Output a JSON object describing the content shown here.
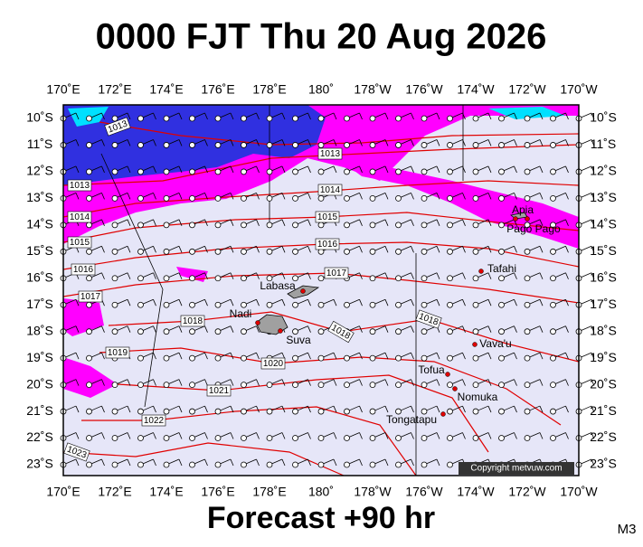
{
  "header": {
    "title": "0000 FJT Thu 20 Aug 2026"
  },
  "axis": {
    "lon_labels": [
      "170˚E",
      "172˚E",
      "174˚E",
      "176˚E",
      "178˚E",
      "180˚",
      "178˚W",
      "176˚W",
      "174˚W",
      "172˚W",
      "170˚W"
    ],
    "lat_labels": [
      "10˚S",
      "11˚S",
      "12˚S",
      "13˚S",
      "14˚S",
      "15˚S",
      "16˚S",
      "17˚S",
      "18˚S",
      "19˚S",
      "20˚S",
      "21˚S",
      "22˚S",
      "23˚S"
    ]
  },
  "isobar_labels": [
    "1013",
    "1013",
    "1013",
    "1014",
    "1014",
    "1015",
    "1015",
    "1016",
    "1016",
    "1017",
    "1017",
    "1018",
    "1018",
    "1018",
    "1019",
    "1020",
    "1021",
    "1022",
    "1023"
  ],
  "places": [
    "Apia",
    "Pago Pago",
    "Tafahi",
    "Labasa",
    "Nadi",
    "Suva",
    "Vava'u",
    "Tofua",
    "Nomuka",
    "Tongatapu"
  ],
  "copyright": "Copyright metvuw.com",
  "footer": {
    "forecast": "Forecast +90 hr",
    "model": "M3"
  }
}
